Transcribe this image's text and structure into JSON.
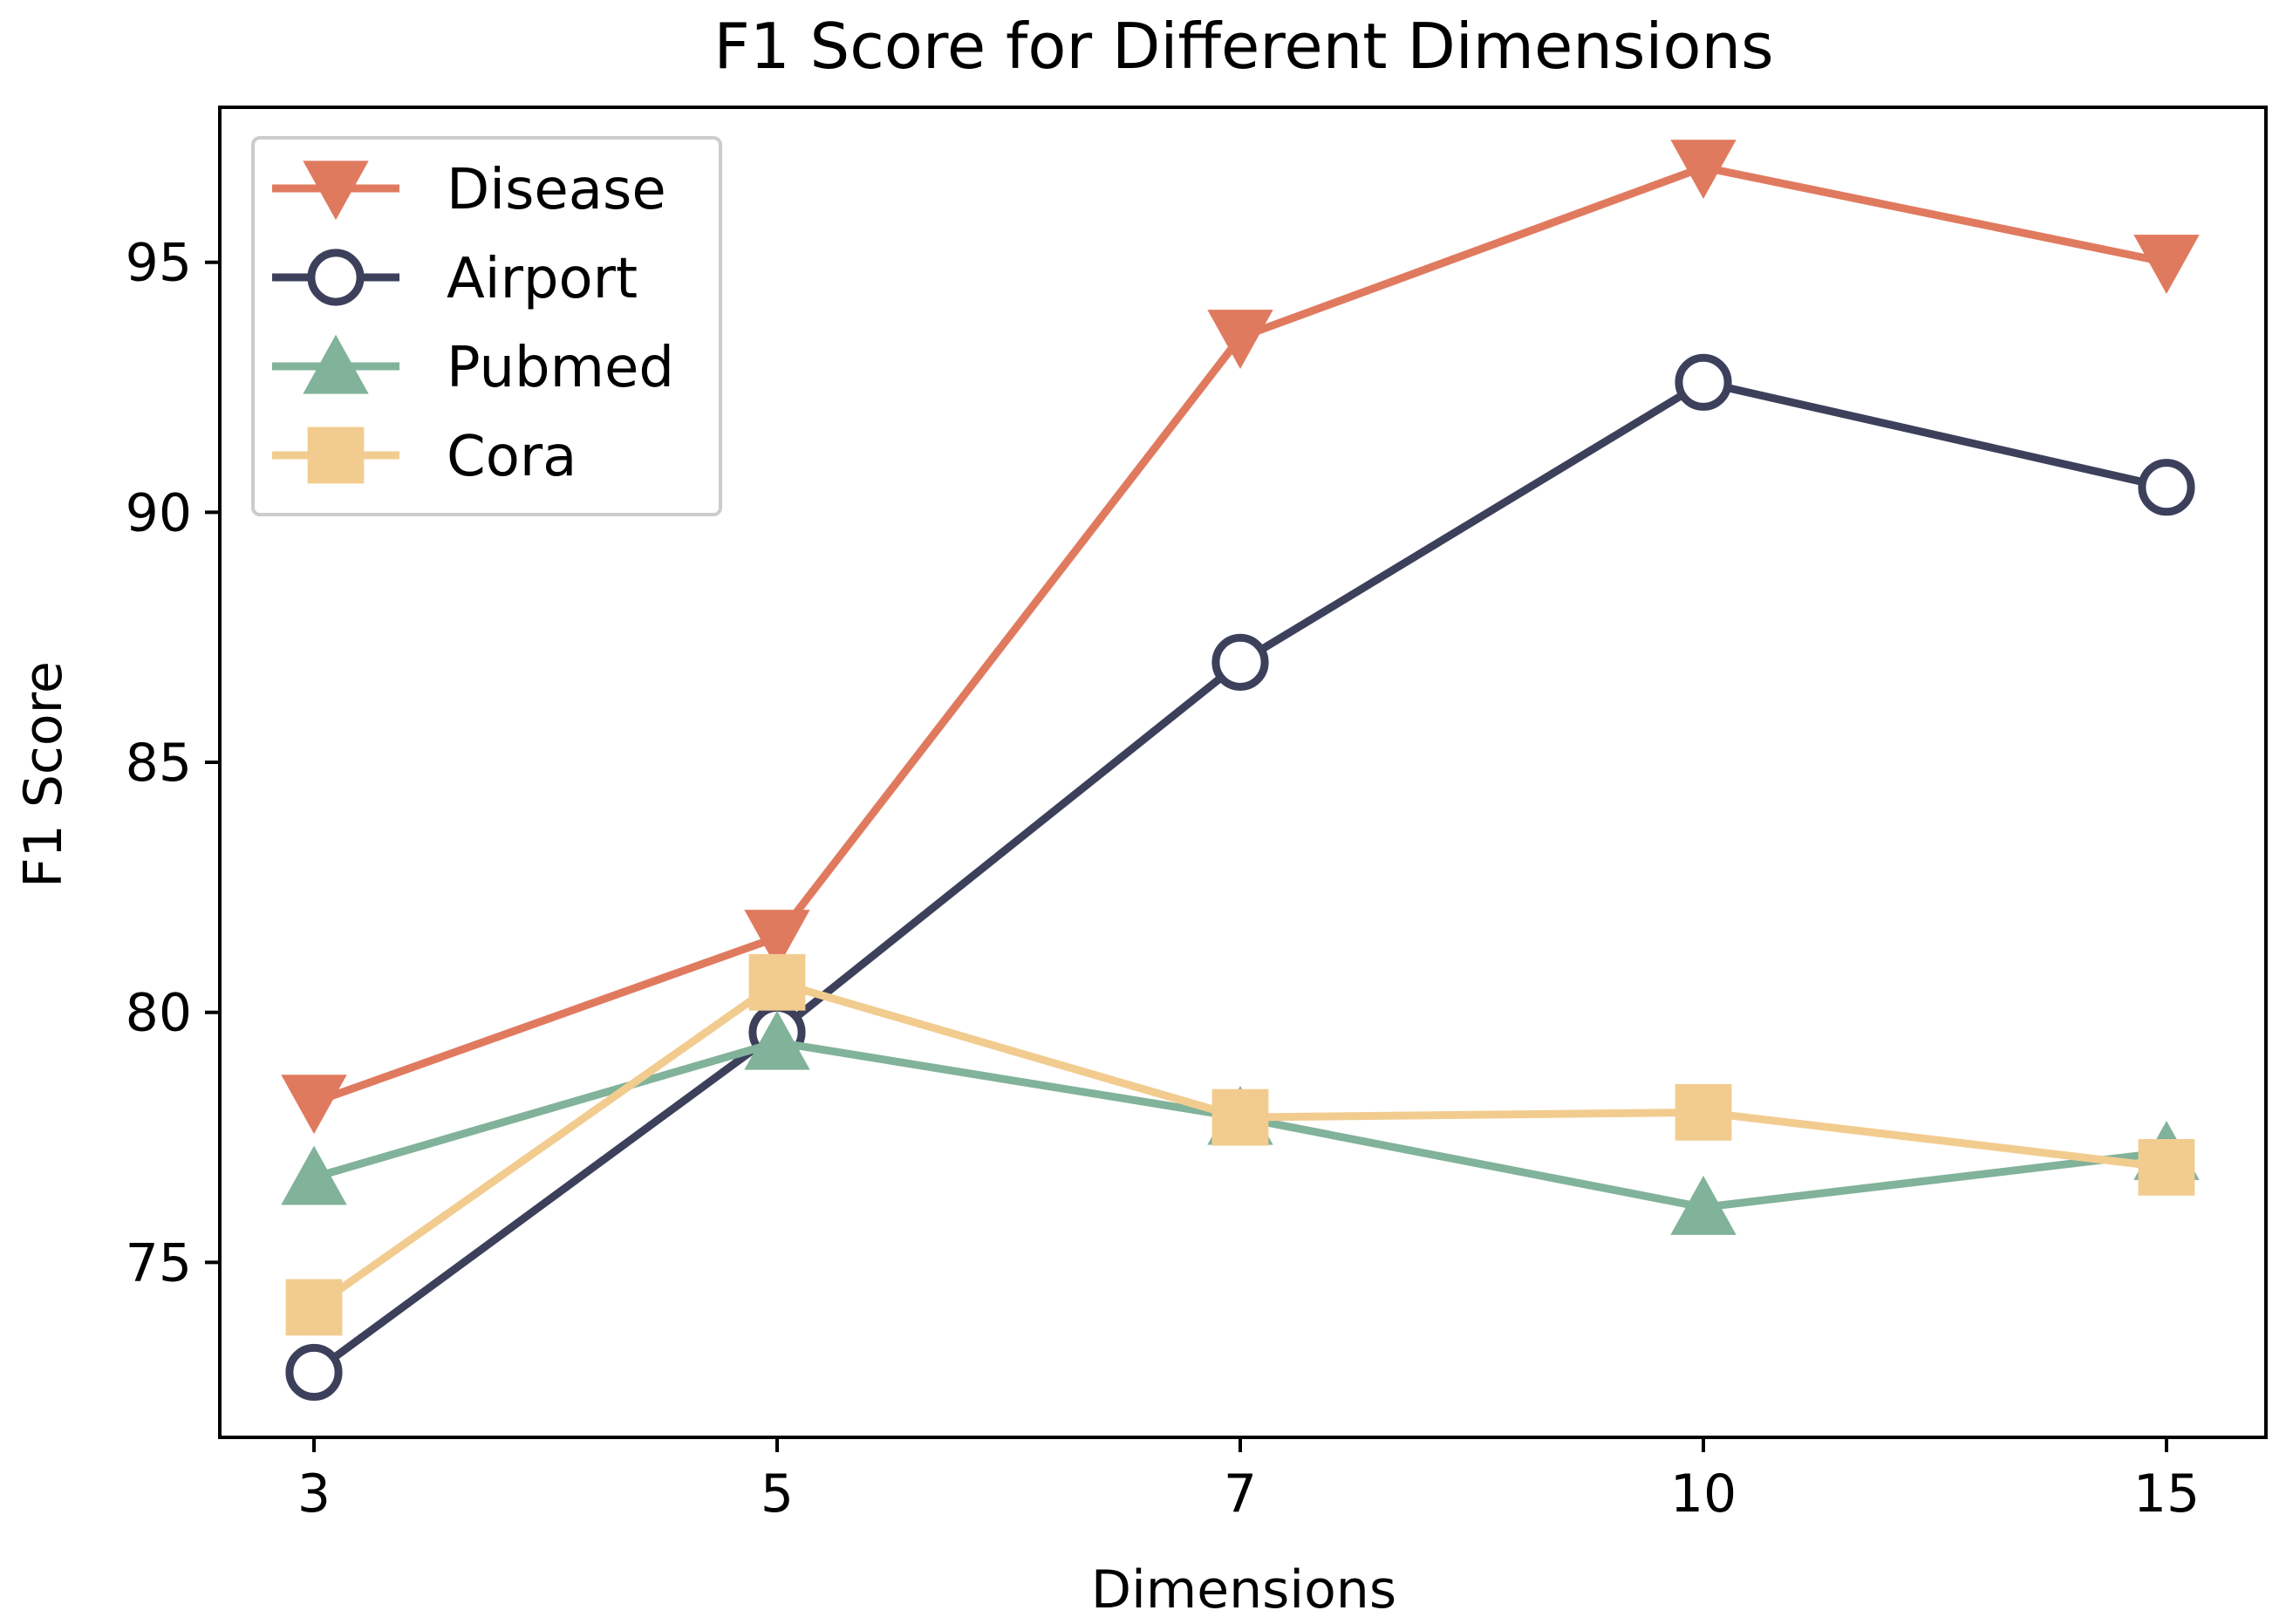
{
  "chart_data": {
    "type": "line",
    "title": "F1 Score for Different Dimensions",
    "xlabel": "Dimensions",
    "ylabel": "F1 Score",
    "categories": [
      "3",
      "5",
      "7",
      "10",
      "15"
    ],
    "ylim": [
      71.5,
      98.1
    ],
    "yticks": [
      75,
      80,
      85,
      90,
      95
    ],
    "grid": false,
    "legend_position": "top-left",
    "series": [
      {
        "name": "Disease",
        "color": "#e07a5f",
        "marker": "triangle-down",
        "values": [
          78.2,
          81.5,
          93.5,
          96.9,
          95.0
        ]
      },
      {
        "name": "Airport",
        "color": "#3d405b",
        "marker": "circle-open",
        "values": [
          72.8,
          79.6,
          87.0,
          92.6,
          90.5
        ]
      },
      {
        "name": "Pubmed",
        "color": "#81b29a",
        "marker": "triangle-up",
        "values": [
          76.7,
          79.4,
          77.9,
          76.1,
          77.2
        ]
      },
      {
        "name": "Cora",
        "color": "#f2cc8f",
        "marker": "square",
        "values": [
          74.1,
          80.6,
          77.9,
          78.0,
          76.9
        ]
      }
    ]
  }
}
